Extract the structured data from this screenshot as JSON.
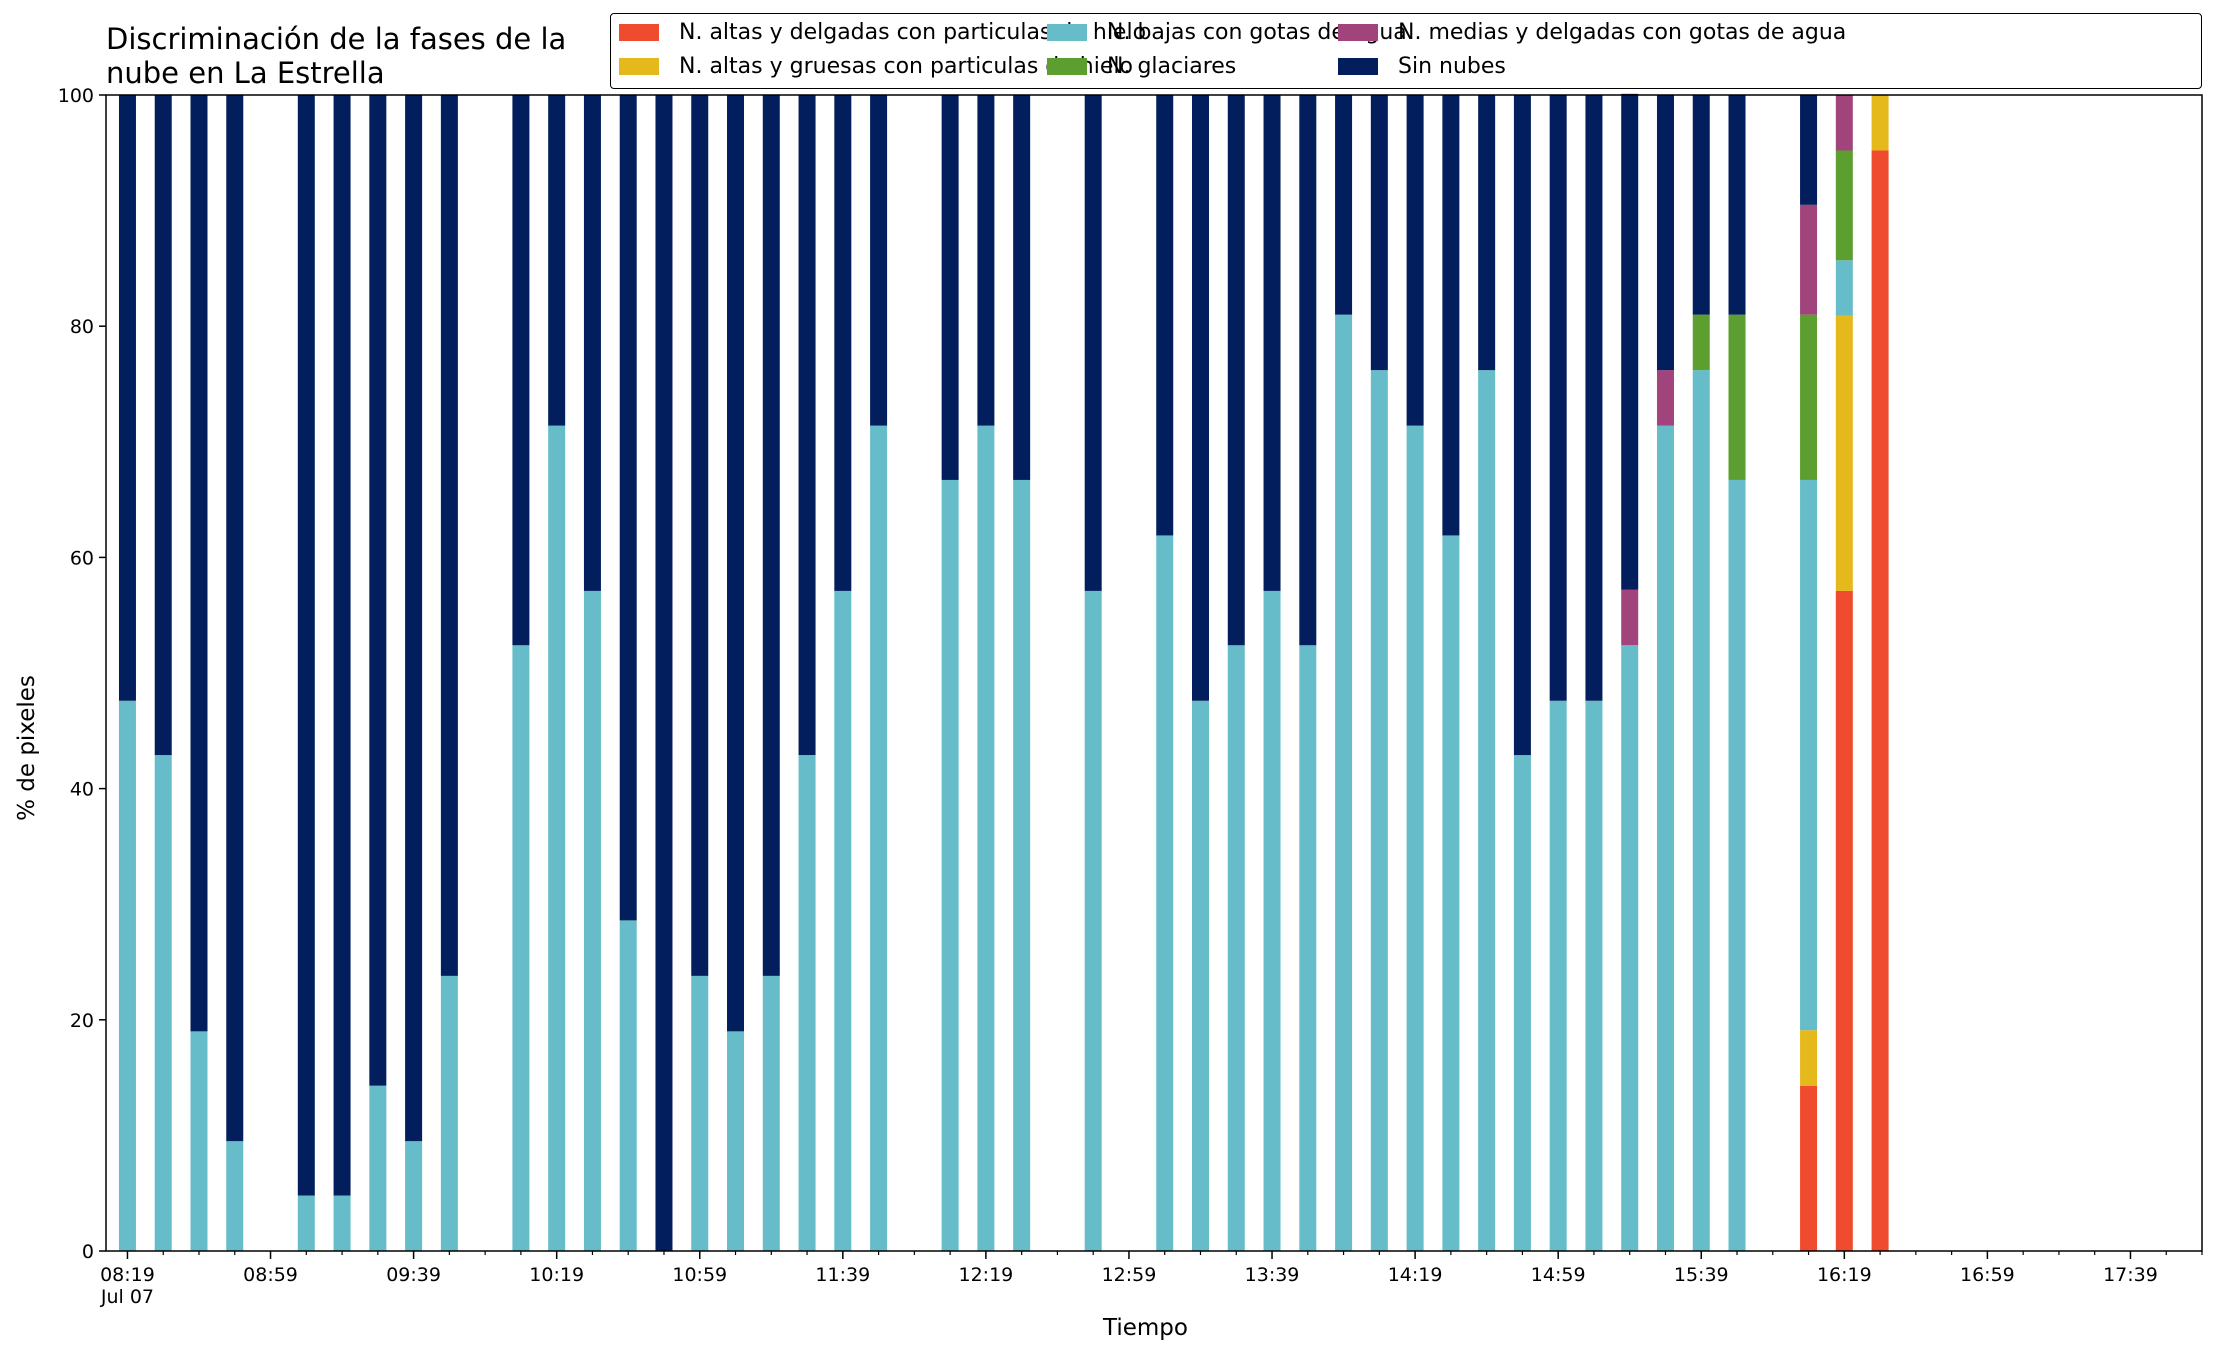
{
  "chart_data": {
    "type": "bar",
    "stacked": true,
    "title": "Discriminación de la fases de la\nnube en La Estrella",
    "xlabel": "Tiempo",
    "ylabel": "% de pixeles",
    "ylim": [
      0,
      100
    ],
    "yticks": [
      0,
      20,
      40,
      60,
      80,
      100
    ],
    "xticks": [
      "08:19\nJul 07",
      "08:59",
      "09:39",
      "10:19",
      "10:59",
      "11:39",
      "12:19",
      "12:59",
      "13:39",
      "14:19",
      "14:59",
      "15:39",
      "16:19",
      "16:59",
      "17:39"
    ],
    "legend_position": "top-right",
    "grid": false,
    "x": [
      "08:19",
      "08:29",
      "08:39",
      "08:49",
      "09:09",
      "09:19",
      "09:29",
      "09:39",
      "09:49",
      "10:09",
      "10:19",
      "10:29",
      "10:39",
      "10:49",
      "10:59",
      "11:09",
      "11:19",
      "11:29",
      "11:39",
      "11:49",
      "12:09",
      "12:19",
      "12:29",
      "12:49",
      "13:09",
      "13:19",
      "13:29",
      "13:39",
      "13:49",
      "13:59",
      "14:09",
      "14:19",
      "14:29",
      "14:39",
      "14:49",
      "14:59",
      "15:09",
      "15:19",
      "15:29",
      "15:39",
      "15:49",
      "16:09",
      "16:19",
      "16:29"
    ],
    "series": [
      {
        "name": "N. altas y delgadas con particulas de hielo",
        "color": "#ef4b2e",
        "values": [
          0,
          0,
          0,
          0,
          0,
          0,
          0,
          0,
          0,
          0,
          0,
          0,
          0,
          0,
          0,
          0,
          0,
          0,
          0,
          0,
          0,
          0,
          0,
          0,
          0,
          0,
          0,
          0,
          0,
          0,
          0,
          0,
          0,
          0,
          0,
          0,
          0,
          0,
          0,
          0,
          0,
          14.3,
          57.1,
          95.2
        ]
      },
      {
        "name": "N. altas y gruesas con particulas de hielo",
        "color": "#e5b81c",
        "values": [
          0,
          0,
          0,
          0,
          0,
          0,
          0,
          0,
          0,
          0,
          0,
          0,
          0,
          0,
          0,
          0,
          0,
          0,
          0,
          0,
          0,
          0,
          0,
          0,
          0,
          0,
          0,
          0,
          0,
          0,
          0,
          0,
          0,
          0,
          0,
          0,
          0,
          0,
          0,
          0,
          0,
          4.8,
          23.8,
          4.8
        ]
      },
      {
        "name": "N. bajas con gotas de agua",
        "color": "#66bdc9",
        "values": [
          47.6,
          42.9,
          19.0,
          9.5,
          4.8,
          4.8,
          14.3,
          9.5,
          23.8,
          52.4,
          71.4,
          57.1,
          28.6,
          0,
          23.8,
          19.0,
          23.8,
          42.9,
          57.1,
          71.4,
          66.7,
          71.4,
          66.7,
          57.1,
          61.9,
          47.6,
          52.4,
          57.1,
          52.4,
          81.0,
          76.2,
          71.4,
          61.9,
          76.2,
          42.9,
          47.6,
          47.6,
          52.4,
          71.4,
          76.2,
          66.7,
          47.6,
          4.8,
          0
        ]
      },
      {
        "name": "N. glaciares",
        "color": "#5c9e2f",
        "values": [
          0,
          0,
          0,
          0,
          0,
          0,
          0,
          0,
          0,
          0,
          0,
          0,
          0,
          0,
          0,
          0,
          0,
          0,
          0,
          0,
          0,
          0,
          0,
          0,
          0,
          0,
          0,
          0,
          0,
          0,
          0,
          0,
          0,
          0,
          0,
          0,
          0,
          0,
          0,
          4.8,
          14.3,
          14.3,
          9.5,
          0
        ]
      },
      {
        "name": "N. medias y delgadas con gotas de agua",
        "color": "#a1447b",
        "values": [
          0,
          0,
          0,
          0,
          0,
          0,
          0,
          0,
          0,
          0,
          0,
          0,
          0,
          0,
          0,
          0,
          0,
          0,
          0,
          0,
          0,
          0,
          0,
          0,
          0,
          0,
          0,
          0,
          0,
          0,
          0,
          0,
          0,
          0,
          0,
          0,
          0,
          4.8,
          4.8,
          0,
          0,
          9.5,
          4.8,
          0
        ]
      },
      {
        "name": "Sin nubes",
        "color": "#031e5c",
        "values": [
          52.4,
          57.1,
          81.0,
          90.5,
          95.2,
          95.2,
          85.7,
          90.5,
          76.2,
          47.6,
          28.6,
          42.9,
          71.4,
          100,
          76.2,
          81.0,
          76.2,
          57.1,
          42.9,
          28.6,
          33.3,
          28.6,
          33.3,
          42.9,
          38.1,
          52.4,
          47.6,
          42.9,
          47.6,
          19.0,
          23.8,
          28.6,
          38.1,
          23.8,
          57.1,
          52.4,
          52.4,
          42.9,
          23.8,
          19.0,
          19.0,
          9.5,
          0,
          0
        ]
      }
    ]
  }
}
